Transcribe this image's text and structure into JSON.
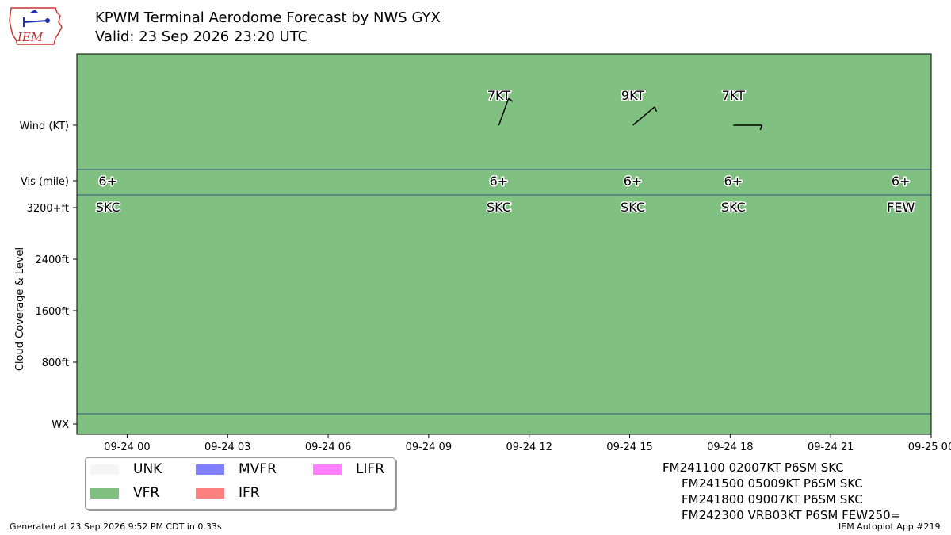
{
  "header": {
    "title": "KPWM Terminal Aerodome Forecast by NWS GYX",
    "valid": "Valid: 23 Sep 2026 23:20 UTC",
    "logo_text": "IEM"
  },
  "colors": {
    "UNK": "#f5f5f5",
    "VFR": "#80c080",
    "MVFR": "#8080ff",
    "IFR": "#ff8080",
    "LIFR": "#ff80ff",
    "separator": "#3a4f7a"
  },
  "chart_data": {
    "type": "timeline",
    "x_range": [
      "09-23 22:30",
      "09-25 00:00"
    ],
    "x_ticks": [
      "09-24 00",
      "09-24 03",
      "09-24 06",
      "09-24 09",
      "09-24 12",
      "09-24 15",
      "09-24 18",
      "09-24 21",
      "09-25 00"
    ],
    "y_labels": {
      "wind": "Wind (KT)",
      "vis": "Vis (mile)",
      "cloud_ticks": [
        "3200+ft",
        "2400ft",
        "1600ft",
        "800ft"
      ],
      "wx": "WX",
      "cloud_axis": "Cloud Coverage & Level"
    },
    "flight_category": "VFR",
    "periods": [
      {
        "time": "09-23 23:20",
        "vis": "6+",
        "cloud": "SKC",
        "wind_dir": null,
        "wind_kt": null,
        "wind_label": ""
      },
      {
        "time": "09-24 11:00",
        "vis": "6+",
        "cloud": "SKC",
        "wind_dir": 20,
        "wind_kt": 7,
        "wind_label": "7KT"
      },
      {
        "time": "09-24 15:00",
        "vis": "6+",
        "cloud": "SKC",
        "wind_dir": 50,
        "wind_kt": 9,
        "wind_label": "9KT"
      },
      {
        "time": "09-24 18:00",
        "vis": "6+",
        "cloud": "SKC",
        "wind_dir": 90,
        "wind_kt": 7,
        "wind_label": "7KT"
      },
      {
        "time": "09-24 23:00",
        "vis": "6+",
        "cloud": "FEW",
        "wind_dir": null,
        "wind_kt": null,
        "wind_label": ""
      }
    ]
  },
  "legend": {
    "items": [
      {
        "label": "UNK",
        "color": "#f5f5f5"
      },
      {
        "label": "VFR",
        "color": "#80c080"
      },
      {
        "label": "MVFR",
        "color": "#8080ff"
      },
      {
        "label": "IFR",
        "color": "#ff8080"
      },
      {
        "label": "LIFR",
        "color": "#ff80ff"
      }
    ]
  },
  "taf_lines": [
    "FM241100 02007KT P6SM SKC",
    "FM241500 05009KT P6SM SKC",
    "FM241800 09007KT P6SM SKC",
    "FM242300 VRB03KT P6SM FEW250="
  ],
  "footer": {
    "generated": "Generated at 23 Sep 2026 9:52 PM CDT in 0.33s",
    "app": "IEM Autoplot App #219"
  }
}
